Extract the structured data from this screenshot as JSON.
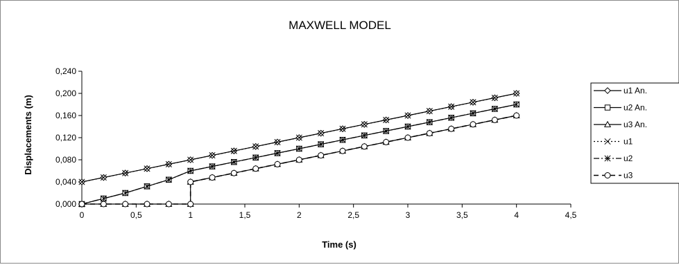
{
  "chart_data": {
    "type": "line",
    "title": "MAXWELL MODEL",
    "xlabel": "Time (s)",
    "ylabel": "Displacements (m)",
    "xlim": [
      0,
      4.5
    ],
    "ylim": [
      0,
      0.24
    ],
    "x_ticks": [
      "0",
      "0,5",
      "1",
      "1,5",
      "2",
      "2,5",
      "3",
      "3,5",
      "4",
      "4,5"
    ],
    "y_ticks": [
      "0,000",
      "0,040",
      "0,080",
      "0,120",
      "0,160",
      "0,200",
      "0,240"
    ],
    "grid": false,
    "legend_position": "right",
    "series": [
      {
        "name": "u1 An.",
        "marker": "diamond",
        "line": "solid",
        "points": [
          [
            0,
            0.04
          ],
          [
            0.2,
            0.048
          ],
          [
            0.4,
            0.056
          ],
          [
            0.6,
            0.064
          ],
          [
            0.8,
            0.072
          ],
          [
            1.0,
            0.08
          ],
          [
            1.2,
            0.088
          ],
          [
            1.4,
            0.096
          ],
          [
            1.6,
            0.104
          ],
          [
            1.8,
            0.112
          ],
          [
            2.0,
            0.12
          ],
          [
            2.2,
            0.128
          ],
          [
            2.4,
            0.136
          ],
          [
            2.6,
            0.144
          ],
          [
            2.8,
            0.152
          ],
          [
            3.0,
            0.16
          ],
          [
            3.2,
            0.168
          ],
          [
            3.4,
            0.176
          ],
          [
            3.6,
            0.184
          ],
          [
            3.8,
            0.192
          ],
          [
            4.0,
            0.2
          ]
        ]
      },
      {
        "name": "u2 An.",
        "marker": "square",
        "line": "solid",
        "points": [
          [
            0,
            0.0
          ],
          [
            0.2,
            0.01
          ],
          [
            0.4,
            0.02
          ],
          [
            0.6,
            0.032
          ],
          [
            0.8,
            0.044
          ],
          [
            1.0,
            0.06
          ],
          [
            1.2,
            0.068
          ],
          [
            1.4,
            0.076
          ],
          [
            1.6,
            0.084
          ],
          [
            1.8,
            0.092
          ],
          [
            2.0,
            0.1
          ],
          [
            2.2,
            0.108
          ],
          [
            2.4,
            0.116
          ],
          [
            2.6,
            0.124
          ],
          [
            2.8,
            0.132
          ],
          [
            3.0,
            0.14
          ],
          [
            3.2,
            0.148
          ],
          [
            3.4,
            0.156
          ],
          [
            3.6,
            0.164
          ],
          [
            3.8,
            0.172
          ],
          [
            4.0,
            0.18
          ]
        ]
      },
      {
        "name": "u3 An.",
        "marker": "triangle",
        "line": "solid",
        "points": [
          [
            0,
            0.0
          ],
          [
            0.2,
            0.0
          ],
          [
            0.4,
            0.0
          ],
          [
            0.6,
            0.0
          ],
          [
            0.8,
            0.0
          ],
          [
            1.0,
            0.0
          ],
          [
            1.0,
            0.04
          ],
          [
            1.2,
            0.048
          ],
          [
            1.4,
            0.056
          ],
          [
            1.6,
            0.064
          ],
          [
            1.8,
            0.072
          ],
          [
            2.0,
            0.08
          ],
          [
            2.2,
            0.088
          ],
          [
            2.4,
            0.096
          ],
          [
            2.6,
            0.104
          ],
          [
            2.8,
            0.112
          ],
          [
            3.0,
            0.12
          ],
          [
            3.2,
            0.128
          ],
          [
            3.4,
            0.136
          ],
          [
            3.6,
            0.144
          ],
          [
            3.8,
            0.152
          ],
          [
            4.0,
            0.16
          ]
        ]
      },
      {
        "name": "u1",
        "marker": "x",
        "line": "dotted",
        "points": [
          [
            0,
            0.04
          ],
          [
            0.2,
            0.048
          ],
          [
            0.4,
            0.056
          ],
          [
            0.6,
            0.064
          ],
          [
            0.8,
            0.072
          ],
          [
            1.0,
            0.08
          ],
          [
            1.2,
            0.088
          ],
          [
            1.4,
            0.096
          ],
          [
            1.6,
            0.104
          ],
          [
            1.8,
            0.112
          ],
          [
            2.0,
            0.12
          ],
          [
            2.2,
            0.128
          ],
          [
            2.4,
            0.136
          ],
          [
            2.6,
            0.144
          ],
          [
            2.8,
            0.152
          ],
          [
            3.0,
            0.16
          ],
          [
            3.2,
            0.168
          ],
          [
            3.4,
            0.176
          ],
          [
            3.6,
            0.184
          ],
          [
            3.8,
            0.192
          ],
          [
            4.0,
            0.2
          ]
        ]
      },
      {
        "name": "u2",
        "marker": "asterisk",
        "line": "dashdot",
        "points": [
          [
            0,
            0.0
          ],
          [
            0.2,
            0.01
          ],
          [
            0.4,
            0.02
          ],
          [
            0.6,
            0.032
          ],
          [
            0.8,
            0.044
          ],
          [
            1.0,
            0.06
          ],
          [
            1.2,
            0.068
          ],
          [
            1.4,
            0.076
          ],
          [
            1.6,
            0.084
          ],
          [
            1.8,
            0.092
          ],
          [
            2.0,
            0.1
          ],
          [
            2.2,
            0.108
          ],
          [
            2.4,
            0.116
          ],
          [
            2.6,
            0.124
          ],
          [
            2.8,
            0.132
          ],
          [
            3.0,
            0.14
          ],
          [
            3.2,
            0.148
          ],
          [
            3.4,
            0.156
          ],
          [
            3.6,
            0.164
          ],
          [
            3.8,
            0.172
          ],
          [
            4.0,
            0.18
          ]
        ]
      },
      {
        "name": "u3",
        "marker": "circle",
        "line": "dashed",
        "points": [
          [
            0,
            0.0
          ],
          [
            0.2,
            0.0
          ],
          [
            0.4,
            0.0
          ],
          [
            0.6,
            0.0
          ],
          [
            0.8,
            0.0
          ],
          [
            1.0,
            0.0
          ],
          [
            1.0,
            0.04
          ],
          [
            1.2,
            0.048
          ],
          [
            1.4,
            0.056
          ],
          [
            1.6,
            0.064
          ],
          [
            1.8,
            0.072
          ],
          [
            2.0,
            0.08
          ],
          [
            2.2,
            0.088
          ],
          [
            2.4,
            0.096
          ],
          [
            2.6,
            0.104
          ],
          [
            2.8,
            0.112
          ],
          [
            3.0,
            0.12
          ],
          [
            3.2,
            0.128
          ],
          [
            3.4,
            0.136
          ],
          [
            3.6,
            0.144
          ],
          [
            3.8,
            0.152
          ],
          [
            4.0,
            0.16
          ]
        ]
      }
    ]
  }
}
